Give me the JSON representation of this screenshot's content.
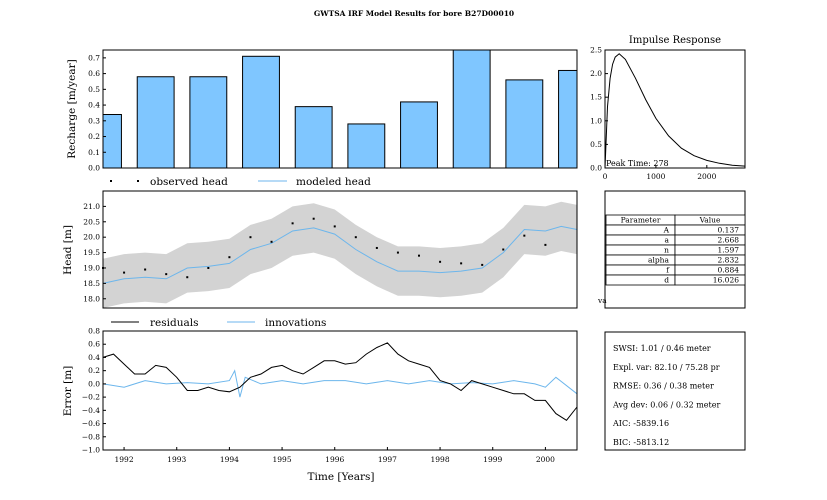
{
  "title": "GWTSA IRF Model Results for bore B27D00010",
  "colors": {
    "bar": "#7fc6ff",
    "model": "#6cb6ec",
    "band": "#d3d3d3",
    "line": "#000000"
  },
  "chart_data": [
    {
      "id": "recharge",
      "type": "bar",
      "ylabel": "Recharge [m/year]",
      "ylim": [
        0,
        0.75
      ],
      "yticks": [
        "0.0",
        "0.1",
        "0.2",
        "0.3",
        "0.4",
        "0.5",
        "0.6",
        "0.7"
      ],
      "xlim": [
        1991.6,
        2000.6
      ],
      "bar_x": [
        1991.6,
        1992.6,
        1993.6,
        1994.6,
        1995.6,
        1996.6,
        1997.6,
        1998.6,
        1999.6,
        2000.6
      ],
      "values": [
        0.34,
        0.58,
        0.58,
        0.71,
        0.39,
        0.28,
        0.42,
        0.75,
        0.56,
        0.62
      ]
    },
    {
      "id": "head",
      "type": "line",
      "ylabel": "Head [m]",
      "ylim": [
        17.7,
        21.5
      ],
      "yticks": [
        "18.0",
        "18.5",
        "19.0",
        "19.5",
        "20.0",
        "20.5",
        "21.0"
      ],
      "legend": [
        "observed head",
        "modeled head"
      ],
      "xlim": [
        1991.6,
        2000.6
      ],
      "observed": {
        "x": [
          1991.6,
          1992.0,
          1992.4,
          1992.8,
          1993.2,
          1993.6,
          1994.0,
          1994.4,
          1994.8,
          1995.2,
          1995.6,
          1996.0,
          1996.4,
          1996.8,
          1997.2,
          1997.6,
          1998.0,
          1998.4,
          1998.8,
          1999.2,
          1999.6,
          2000.0
        ],
        "y": [
          19.0,
          18.85,
          18.95,
          18.8,
          18.7,
          19.0,
          19.35,
          20.0,
          19.85,
          20.45,
          20.6,
          20.35,
          20.0,
          19.65,
          19.5,
          19.4,
          19.2,
          19.15,
          19.1,
          19.6,
          20.05,
          19.75
        ]
      },
      "modeled": {
        "x": [
          1991.6,
          1992.0,
          1992.4,
          1992.8,
          1993.2,
          1993.6,
          1994.0,
          1994.4,
          1994.8,
          1995.2,
          1995.6,
          1996.0,
          1996.4,
          1996.8,
          1997.2,
          1997.6,
          1998.0,
          1998.4,
          1998.8,
          1999.2,
          1999.6,
          2000.0,
          2000.3,
          2000.6
        ],
        "y": [
          18.5,
          18.65,
          18.7,
          18.65,
          19.0,
          19.05,
          19.15,
          19.6,
          19.8,
          20.2,
          20.3,
          20.1,
          19.6,
          19.2,
          18.9,
          18.9,
          18.85,
          18.9,
          19.0,
          19.5,
          20.25,
          20.2,
          20.35,
          20.25
        ]
      },
      "band_halfwidth": 0.8
    },
    {
      "id": "error",
      "type": "line",
      "ylabel": "Error [m]",
      "xlabel": "Time [Years]",
      "ylim": [
        -1.0,
        0.8
      ],
      "yticks": [
        "0.8",
        "0.6",
        "0.4",
        "0.2",
        "0.0",
        "−0.2",
        "−0.4",
        "−0.6",
        "−0.8",
        "−1.0"
      ],
      "xticks": [
        "1992",
        "1993",
        "1994",
        "1995",
        "1996",
        "1997",
        "1998",
        "1999",
        "2000"
      ],
      "legend": [
        "residuals",
        "innovations"
      ],
      "xlim": [
        1991.6,
        2000.6
      ],
      "residuals": {
        "x": [
          1991.6,
          1991.8,
          1992.0,
          1992.2,
          1992.4,
          1992.6,
          1992.8,
          1993.0,
          1993.2,
          1993.4,
          1993.6,
          1993.8,
          1994.0,
          1994.2,
          1994.4,
          1994.6,
          1994.8,
          1995.0,
          1995.2,
          1995.4,
          1995.6,
          1995.8,
          1996.0,
          1996.2,
          1996.4,
          1996.6,
          1996.8,
          1997.0,
          1997.2,
          1997.4,
          1997.6,
          1997.8,
          1998.0,
          1998.2,
          1998.4,
          1998.6,
          1998.8,
          1999.0,
          1999.2,
          1999.4,
          1999.6,
          1999.8,
          2000.0,
          2000.2,
          2000.4,
          2000.6
        ],
        "y": [
          0.4,
          0.45,
          0.3,
          0.15,
          0.15,
          0.28,
          0.25,
          0.1,
          -0.1,
          -0.1,
          -0.05,
          -0.1,
          -0.12,
          -0.05,
          0.1,
          0.15,
          0.25,
          0.28,
          0.2,
          0.15,
          0.25,
          0.35,
          0.35,
          0.3,
          0.32,
          0.45,
          0.55,
          0.62,
          0.45,
          0.35,
          0.3,
          0.25,
          0.05,
          0.0,
          -0.1,
          0.05,
          0.0,
          -0.05,
          -0.1,
          -0.15,
          -0.15,
          -0.25,
          -0.25,
          -0.45,
          -0.55,
          -0.35
        ]
      },
      "innovations": {
        "x": [
          1991.6,
          1992.0,
          1992.4,
          1992.8,
          1993.2,
          1993.6,
          1994.0,
          1994.1,
          1994.2,
          1994.3,
          1994.6,
          1995.0,
          1995.4,
          1995.8,
          1996.2,
          1996.6,
          1997.0,
          1997.4,
          1997.8,
          1998.2,
          1998.6,
          1999.0,
          1999.4,
          1999.8,
          2000.0,
          2000.2,
          2000.6
        ],
        "y": [
          0.0,
          -0.05,
          0.05,
          0.0,
          0.02,
          0.0,
          0.05,
          0.2,
          -0.2,
          0.1,
          0.0,
          0.05,
          0.0,
          0.05,
          0.05,
          0.0,
          0.05,
          0.0,
          0.05,
          0.0,
          0.02,
          0.0,
          0.05,
          0.0,
          -0.05,
          0.1,
          -0.15
        ]
      }
    },
    {
      "id": "impulse",
      "type": "line",
      "title": "Impulse Response",
      "ylim": [
        0,
        2.5
      ],
      "yticks": [
        "0.0",
        "0.5",
        "1.0",
        "1.5",
        "2.0",
        "2.5"
      ],
      "xlim": [
        0,
        2750
      ],
      "xticks": [
        "0",
        "1000",
        "2000"
      ],
      "peak_label": "Peak Time: 278",
      "x": [
        0,
        50,
        100,
        150,
        200,
        278,
        400,
        600,
        800,
        1000,
        1250,
        1500,
        1750,
        2000,
        2250,
        2500,
        2750
      ],
      "y": [
        0,
        1.3,
        1.9,
        2.2,
        2.35,
        2.42,
        2.3,
        1.9,
        1.45,
        1.05,
        0.68,
        0.42,
        0.26,
        0.16,
        0.1,
        0.06,
        0.04
      ]
    }
  ],
  "params": {
    "headers": [
      "Parameter",
      "Value"
    ],
    "rows": [
      [
        "A",
        "0.137"
      ],
      [
        "a",
        "2.668"
      ],
      [
        "n",
        "1.597"
      ],
      [
        "alpha",
        "2.832"
      ],
      [
        "f",
        "0.884"
      ],
      [
        "d",
        "16.026"
      ]
    ],
    "cut_label": "va"
  },
  "stats": [
    "SWSI: 1.01 / 0.46 meter",
    "Expl. var: 82.10 / 75.28 pr",
    "RMSE: 0.36 / 0.38 meter",
    "Avg dev: 0.06 / 0.32 meter",
    "AIC: -5839.16",
    "BIC: -5813.12"
  ]
}
